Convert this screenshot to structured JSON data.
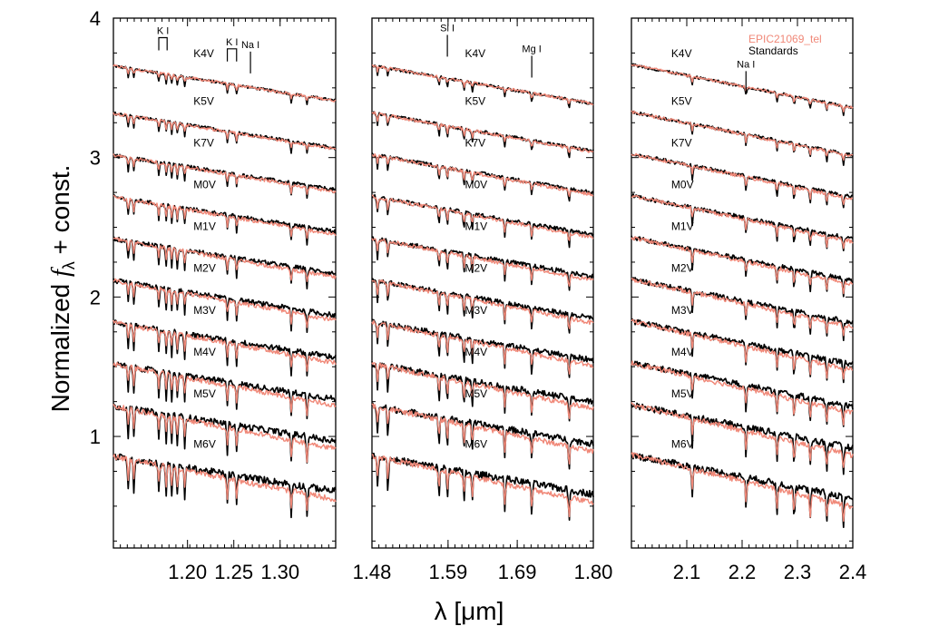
{
  "chart_data": {
    "type": "line",
    "ylabel_prefix": "Normalized ",
    "ylabel_symbol": "f",
    "ylabel_sub": "λ",
    "ylabel_suffix": " + const.",
    "xlabel_prefix": "λ [",
    "xlabel_unit": "μm",
    "xlabel_suffix": "]",
    "ylim": [
      0.2,
      4.0
    ],
    "yticks": [
      "1",
      "2",
      "3",
      "4"
    ],
    "ytick_values": [
      1,
      2,
      3,
      4
    ],
    "spectral_types": [
      "K4V",
      "K5V",
      "K7V",
      "M0V",
      "M1V",
      "M2V",
      "M3V",
      "M4V",
      "M5V",
      "M6V"
    ],
    "offsets": [
      3.62,
      3.28,
      2.98,
      2.68,
      2.38,
      2.08,
      1.78,
      1.48,
      1.18,
      0.82
    ],
    "legend": {
      "placement": "top-right",
      "entries": [
        {
          "text": "EPIC21069_tel",
          "color": "#f08878"
        },
        {
          "text": "Standards",
          "color": "#000000"
        }
      ]
    },
    "colors": {
      "target": "#f08878",
      "standard": "#000000"
    },
    "panels": [
      {
        "band": "J",
        "xlim": [
          1.12,
          1.36
        ],
        "xtick_labels": [
          "1.20",
          "1.25",
          "1.30"
        ],
        "xtick_values": [
          1.2,
          1.25,
          1.3
        ],
        "slope": -0.5,
        "lines": [
          {
            "text": "K I",
            "x1": 1.169,
            "x2": 1.178,
            "bracket": true,
            "y": 3.86
          },
          {
            "text": "K I",
            "x1": 1.243,
            "x2": 1.253,
            "bracket": true,
            "y": 3.78
          },
          {
            "text": "Na I",
            "x1": 1.268,
            "bracket": false,
            "y": 3.76
          }
        ],
        "features": [
          1.136,
          1.142,
          1.169,
          1.177,
          1.183,
          1.189,
          1.197,
          1.243,
          1.253,
          1.312,
          1.329
        ]
      },
      {
        "band": "H",
        "xlim": [
          1.48,
          1.8
        ],
        "xtick_labels": [
          "1.48",
          "1.59",
          "1.69",
          "1.80"
        ],
        "xtick_values": [
          1.48,
          1.59,
          1.69,
          1.8
        ],
        "slope": -0.55,
        "lines": [
          {
            "text": "Si I",
            "x1": 1.589,
            "bracket": false,
            "y": 3.88
          },
          {
            "text": "Mg I",
            "x1": 1.711,
            "bracket": false,
            "y": 3.73
          }
        ],
        "features": [
          1.488,
          1.503,
          1.577,
          1.589,
          1.613,
          1.625,
          1.672,
          1.711,
          1.765
        ]
      },
      {
        "band": "K",
        "xlim": [
          2.0,
          2.4
        ],
        "xtick_labels": [
          "2.1",
          "2.2",
          "2.3",
          "2.4"
        ],
        "xtick_values": [
          2.1,
          2.2,
          2.3,
          2.4
        ],
        "slope": -0.62,
        "lines": [
          {
            "text": "Na I",
            "x1": 2.207,
            "bracket": false,
            "y": 3.62
          }
        ],
        "features": [
          2.11,
          2.207,
          2.263,
          2.294,
          2.323,
          2.353,
          2.383
        ]
      }
    ]
  }
}
